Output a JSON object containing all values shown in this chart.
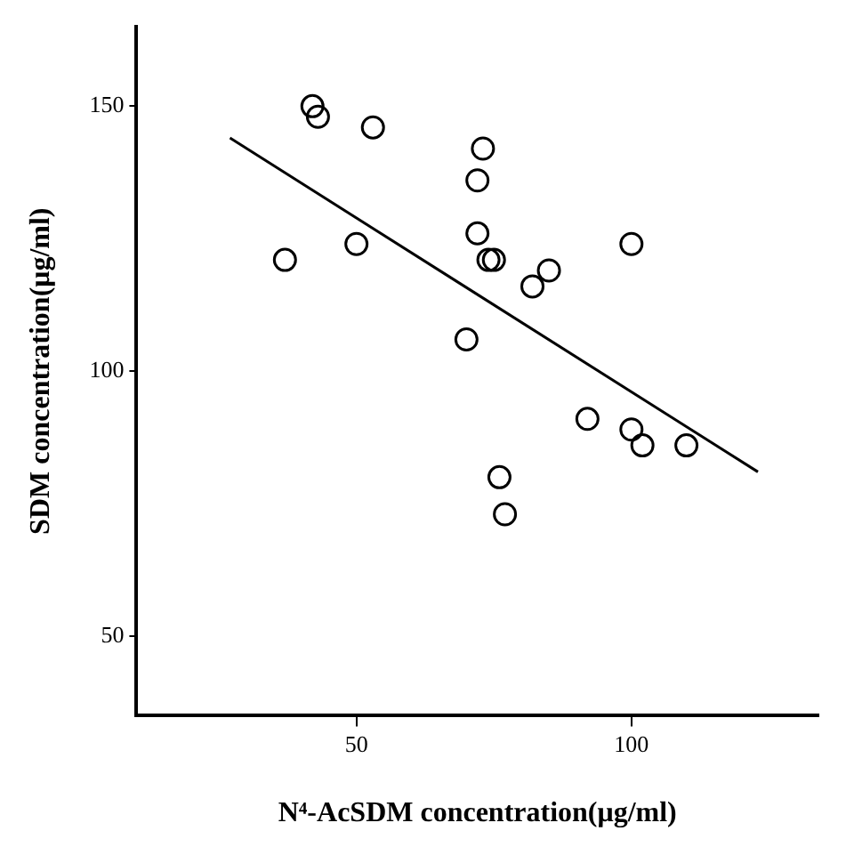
{
  "chart_data": {
    "type": "scatter",
    "xlabel": "N⁴-AcSDM concentration(μg/ml)",
    "ylabel": "SDM concentration(μg/ml)",
    "xlim": [
      10,
      134
    ],
    "ylim": [
      35,
      165
    ],
    "xticks": [
      50,
      100
    ],
    "yticks": [
      50,
      100,
      150
    ],
    "grid": false,
    "legend": false,
    "marker": "circle",
    "series": [
      {
        "type": "scatter",
        "color": "#000000",
        "x": [
          37,
          42,
          43,
          50,
          53,
          73,
          72,
          72,
          74,
          75,
          85,
          82,
          100,
          70,
          92,
          100,
          102,
          110,
          76,
          77
        ],
        "values": [
          121,
          150,
          148,
          124,
          146,
          142,
          136,
          126,
          121,
          121,
          119,
          116,
          124,
          106,
          91,
          89,
          86,
          86,
          80,
          73
        ]
      },
      {
        "type": "line",
        "color": "#000000",
        "line_style": "solid",
        "marker": "none",
        "x": [
          27,
          123
        ],
        "values": [
          144,
          81
        ]
      }
    ]
  }
}
